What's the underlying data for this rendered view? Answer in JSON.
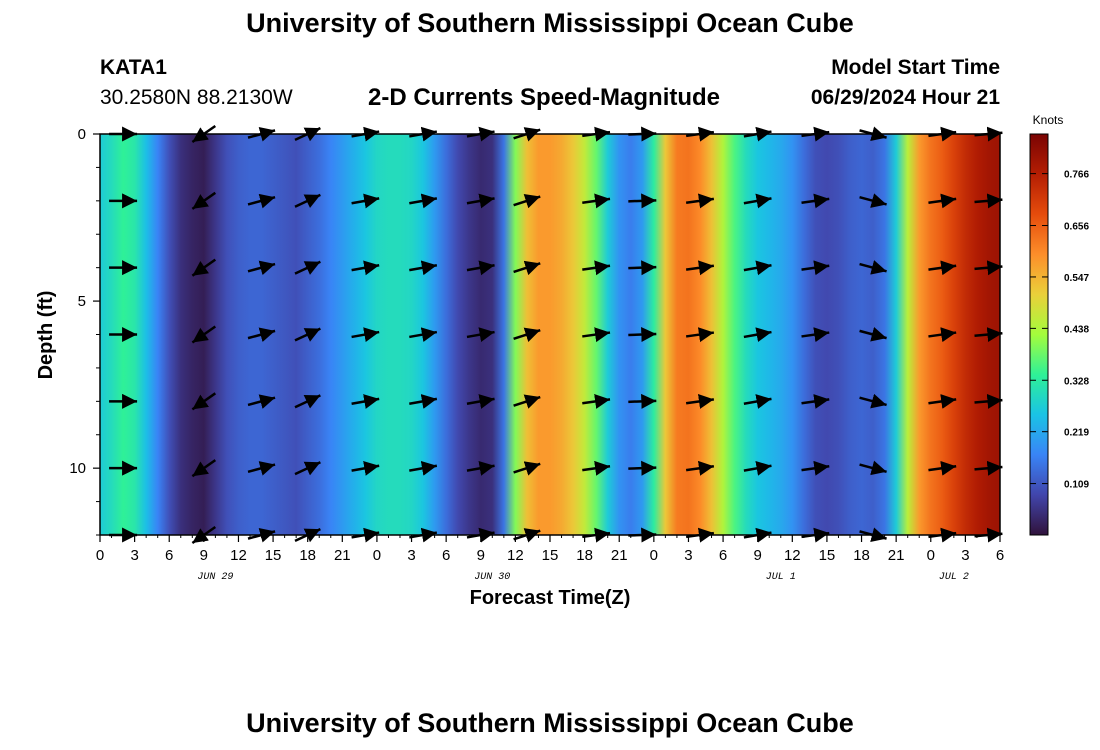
{
  "header": {
    "title": "University of Southern Mississippi Ocean Cube",
    "station": "KATA1",
    "coords": "30.2580N  88.2130W",
    "plot_title": "2-D Currents Speed-Magnitude",
    "model_start_label": "Model Start Time",
    "model_start_value": "06/29/2024 Hour 21"
  },
  "footer": {
    "title": "University of Southern Mississippi Ocean Cube"
  },
  "chart_data": {
    "type": "heatmap",
    "title": "2-D Currents Speed-Magnitude",
    "xlabel": "Forecast Time(Z)",
    "ylabel": "Depth (ft)",
    "x_range_hours": [
      0,
      78
    ],
    "y_range_ft": [
      0,
      12
    ],
    "x_ticks": [
      {
        "hour": 0,
        "label": "0"
      },
      {
        "hour": 3,
        "label": "3"
      },
      {
        "hour": 6,
        "label": "6"
      },
      {
        "hour": 9,
        "label": "9"
      },
      {
        "hour": 12,
        "label": "12"
      },
      {
        "hour": 15,
        "label": "15"
      },
      {
        "hour": 18,
        "label": "18"
      },
      {
        "hour": 21,
        "label": "21"
      },
      {
        "hour": 24,
        "label": "0"
      },
      {
        "hour": 27,
        "label": "3"
      },
      {
        "hour": 30,
        "label": "6"
      },
      {
        "hour": 33,
        "label": "9"
      },
      {
        "hour": 36,
        "label": "12"
      },
      {
        "hour": 39,
        "label": "15"
      },
      {
        "hour": 42,
        "label": "18"
      },
      {
        "hour": 45,
        "label": "21"
      },
      {
        "hour": 48,
        "label": "0"
      },
      {
        "hour": 51,
        "label": "3"
      },
      {
        "hour": 54,
        "label": "6"
      },
      {
        "hour": 57,
        "label": "9"
      },
      {
        "hour": 60,
        "label": "12"
      },
      {
        "hour": 63,
        "label": "15"
      },
      {
        "hour": 66,
        "label": "18"
      },
      {
        "hour": 69,
        "label": "21"
      },
      {
        "hour": 72,
        "label": "0"
      },
      {
        "hour": 75,
        "label": "3"
      },
      {
        "hour": 78,
        "label": "6"
      }
    ],
    "date_labels": [
      {
        "hour": 10,
        "label": "JUN 29"
      },
      {
        "hour": 34,
        "label": "JUN 30"
      },
      {
        "hour": 59,
        "label": "JUL 1"
      },
      {
        "hour": 74,
        "label": "JUL 2"
      }
    ],
    "y_ticks": [
      {
        "value": 0,
        "label": "0"
      },
      {
        "value": 5,
        "label": "5"
      },
      {
        "value": 10,
        "label": "10"
      }
    ],
    "speed_profile_knots": [
      [
        0,
        0.27
      ],
      [
        1,
        0.3
      ],
      [
        2,
        0.34
      ],
      [
        3,
        0.32
      ],
      [
        4,
        0.25
      ],
      [
        5,
        0.17
      ],
      [
        6,
        0.1
      ],
      [
        7,
        0.05
      ],
      [
        8,
        0.03
      ],
      [
        9,
        0.02
      ],
      [
        10,
        0.06
      ],
      [
        11,
        0.1
      ],
      [
        12,
        0.12
      ],
      [
        13,
        0.13
      ],
      [
        14,
        0.13
      ],
      [
        15,
        0.12
      ],
      [
        16,
        0.11
      ],
      [
        17,
        0.1
      ],
      [
        18,
        0.12
      ],
      [
        19,
        0.14
      ],
      [
        20,
        0.17
      ],
      [
        21,
        0.2
      ],
      [
        22,
        0.23
      ],
      [
        23,
        0.26
      ],
      [
        24,
        0.29
      ],
      [
        25,
        0.3
      ],
      [
        26,
        0.3
      ],
      [
        27,
        0.29
      ],
      [
        28,
        0.26
      ],
      [
        29,
        0.2
      ],
      [
        30,
        0.14
      ],
      [
        31,
        0.09
      ],
      [
        32,
        0.06
      ],
      [
        33,
        0.04
      ],
      [
        34,
        0.05
      ],
      [
        35,
        0.15
      ],
      [
        36,
        0.4
      ],
      [
        37,
        0.53
      ],
      [
        38,
        0.58
      ],
      [
        39,
        0.58
      ],
      [
        40,
        0.56
      ],
      [
        41,
        0.52
      ],
      [
        42,
        0.46
      ],
      [
        43,
        0.38
      ],
      [
        44,
        0.27
      ],
      [
        45,
        0.19
      ],
      [
        46,
        0.16
      ],
      [
        47,
        0.2
      ],
      [
        48,
        0.33
      ],
      [
        49,
        0.52
      ],
      [
        50,
        0.62
      ],
      [
        51,
        0.63
      ],
      [
        52,
        0.6
      ],
      [
        53,
        0.53
      ],
      [
        54,
        0.44
      ],
      [
        55,
        0.36
      ],
      [
        56,
        0.3
      ],
      [
        57,
        0.26
      ],
      [
        58,
        0.24
      ],
      [
        59,
        0.22
      ],
      [
        60,
        0.19
      ],
      [
        61,
        0.14
      ],
      [
        62,
        0.1
      ],
      [
        63,
        0.09
      ],
      [
        64,
        0.1
      ],
      [
        65,
        0.12
      ],
      [
        66,
        0.13
      ],
      [
        67,
        0.12
      ],
      [
        68,
        0.15
      ],
      [
        69,
        0.27
      ],
      [
        70,
        0.45
      ],
      [
        71,
        0.58
      ],
      [
        72,
        0.63
      ],
      [
        73,
        0.66
      ],
      [
        74,
        0.7
      ],
      [
        75,
        0.74
      ],
      [
        76,
        0.77
      ],
      [
        77,
        0.79
      ],
      [
        78,
        0.8
      ]
    ],
    "vector_depths_ft": [
      0,
      2,
      4,
      6,
      8,
      10,
      12
    ],
    "vector_columns": [
      {
        "hour": 2,
        "angle": 0
      },
      {
        "hour": 9,
        "angle": 145
      },
      {
        "hour": 14,
        "angle": -15
      },
      {
        "hour": 18,
        "angle": -25
      },
      {
        "hour": 23,
        "angle": -10
      },
      {
        "hour": 28,
        "angle": -10
      },
      {
        "hour": 33,
        "angle": -10
      },
      {
        "hour": 37,
        "angle": -18
      },
      {
        "hour": 43,
        "angle": -8
      },
      {
        "hour": 47,
        "angle": -2
      },
      {
        "hour": 52,
        "angle": -8
      },
      {
        "hour": 57,
        "angle": -10
      },
      {
        "hour": 62,
        "angle": -8
      },
      {
        "hour": 67,
        "angle": 15
      },
      {
        "hour": 73,
        "angle": -8
      },
      {
        "hour": 77,
        "angle": -5
      }
    ],
    "colorbar": {
      "label": "Knots",
      "range": [
        0,
        0.85
      ],
      "ticks": [
        "0.109",
        "0.219",
        "0.328",
        "0.438",
        "0.547",
        "0.656",
        "0.766"
      ]
    },
    "colors": {
      "low": "#30123b",
      "high": "#7a0403"
    }
  }
}
